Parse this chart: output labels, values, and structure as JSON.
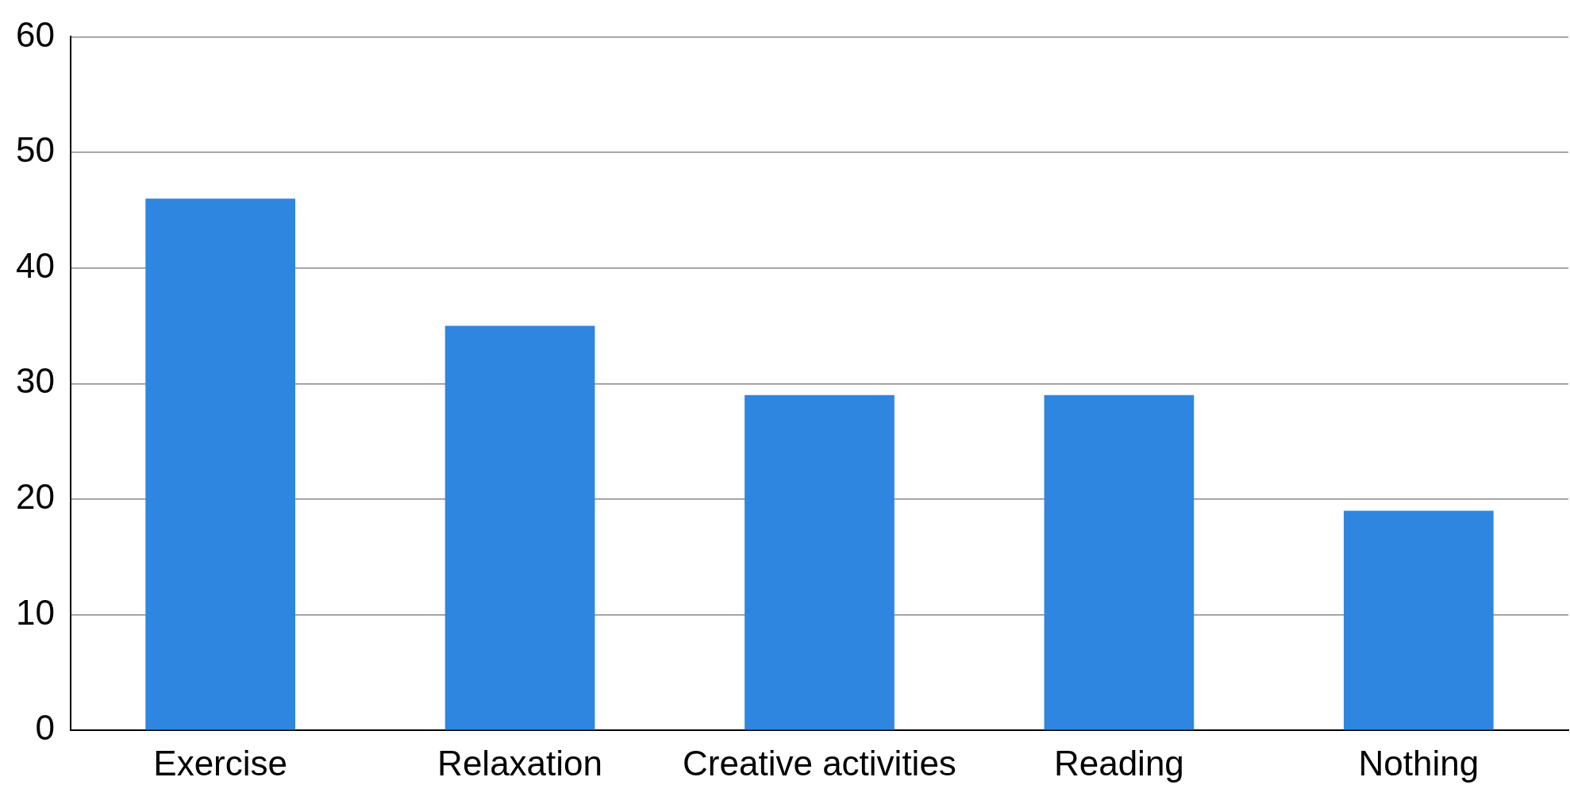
{
  "chart_data": {
    "type": "bar",
    "categories": [
      "Exercise",
      "Relaxation",
      "Creative activities",
      "Reading",
      "Nothing"
    ],
    "values": [
      46,
      35,
      29,
      29,
      19
    ],
    "color": "#2f86e0",
    "ylim": [
      0,
      60
    ],
    "yticks": [
      0,
      10,
      20,
      30,
      40,
      50,
      60
    ],
    "grid": "y",
    "legend": false
  }
}
